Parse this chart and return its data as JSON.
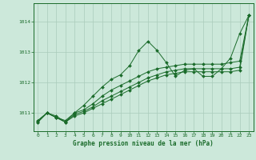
{
  "xlabel": "Graphe pression niveau de la mer (hPa)",
  "background_color": "#cce8da",
  "plot_bg_color": "#cce8da",
  "grid_color": "#aaccbb",
  "line_color": "#1a6b2a",
  "xlim": [
    -0.5,
    23.5
  ],
  "ylim": [
    1010.4,
    1014.6
  ],
  "yticks": [
    1011,
    1012,
    1013,
    1014
  ],
  "xticks": [
    0,
    1,
    2,
    3,
    4,
    5,
    6,
    7,
    8,
    9,
    10,
    11,
    12,
    13,
    14,
    15,
    16,
    17,
    18,
    19,
    20,
    21,
    22,
    23
  ],
  "series": [
    [
      1010.7,
      1011.0,
      1010.85,
      1010.75,
      1011.0,
      1011.25,
      1011.55,
      1011.85,
      1012.1,
      1012.25,
      1012.55,
      1013.05,
      1013.35,
      1013.05,
      1012.65,
      1012.2,
      1012.4,
      1012.45,
      1012.2,
      1012.2,
      1012.45,
      1012.8,
      1013.6,
      1014.2
    ],
    [
      1010.75,
      1011.0,
      1010.85,
      1010.7,
      1011.0,
      1011.1,
      1011.3,
      1011.55,
      1011.75,
      1011.9,
      1012.05,
      1012.2,
      1012.35,
      1012.45,
      1012.5,
      1012.55,
      1012.6,
      1012.6,
      1012.6,
      1012.6,
      1012.6,
      1012.65,
      1012.7,
      1014.2
    ],
    [
      1010.75,
      1011.0,
      1010.85,
      1010.7,
      1010.95,
      1011.05,
      1011.2,
      1011.4,
      1011.55,
      1011.7,
      1011.85,
      1012.0,
      1012.15,
      1012.25,
      1012.35,
      1012.4,
      1012.45,
      1012.45,
      1012.45,
      1012.45,
      1012.45,
      1012.45,
      1012.5,
      1014.2
    ],
    [
      1010.7,
      1011.0,
      1010.9,
      1010.7,
      1010.9,
      1011.0,
      1011.15,
      1011.3,
      1011.45,
      1011.6,
      1011.75,
      1011.9,
      1012.05,
      1012.15,
      1012.25,
      1012.3,
      1012.35,
      1012.35,
      1012.35,
      1012.35,
      1012.35,
      1012.35,
      1012.4,
      1014.2
    ]
  ]
}
